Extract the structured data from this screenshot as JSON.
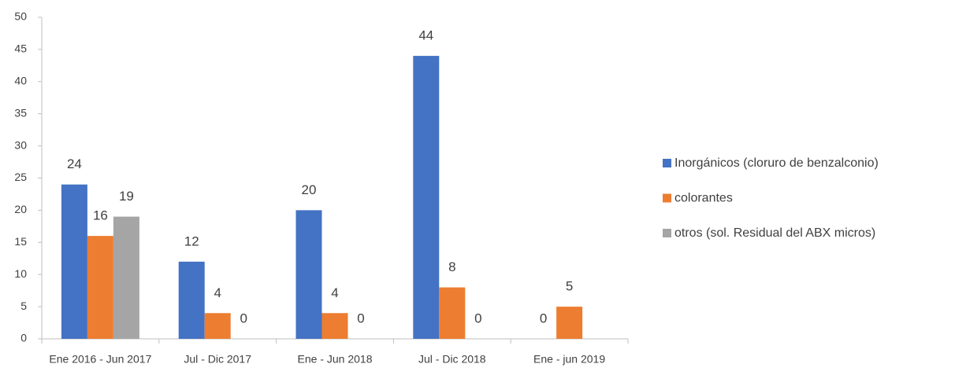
{
  "chart_data": {
    "type": "bar",
    "categories": [
      "Ene 2016 - Jun 2017",
      "Jul - Dic 2017",
      "Ene - Jun 2018",
      "Jul - Dic 2018",
      "Ene - jun 2019"
    ],
    "series": [
      {
        "name": "Inorgánicos (cloruro de benzalconio)",
        "color": "#4472c4",
        "values": [
          24,
          12,
          20,
          44,
          0
        ]
      },
      {
        "name": "colorantes",
        "color": "#ed7d31",
        "values": [
          16,
          4,
          4,
          8,
          5
        ]
      },
      {
        "name": "otros (sol. Residual del ABX micros)",
        "color": "#a5a5a5",
        "values": [
          19,
          0,
          0,
          0,
          null
        ]
      }
    ],
    "ylim": [
      0,
      50
    ],
    "yticks": [
      0,
      5,
      10,
      15,
      20,
      25,
      30,
      35,
      40,
      45,
      50
    ],
    "grid": false,
    "legend": "right"
  }
}
